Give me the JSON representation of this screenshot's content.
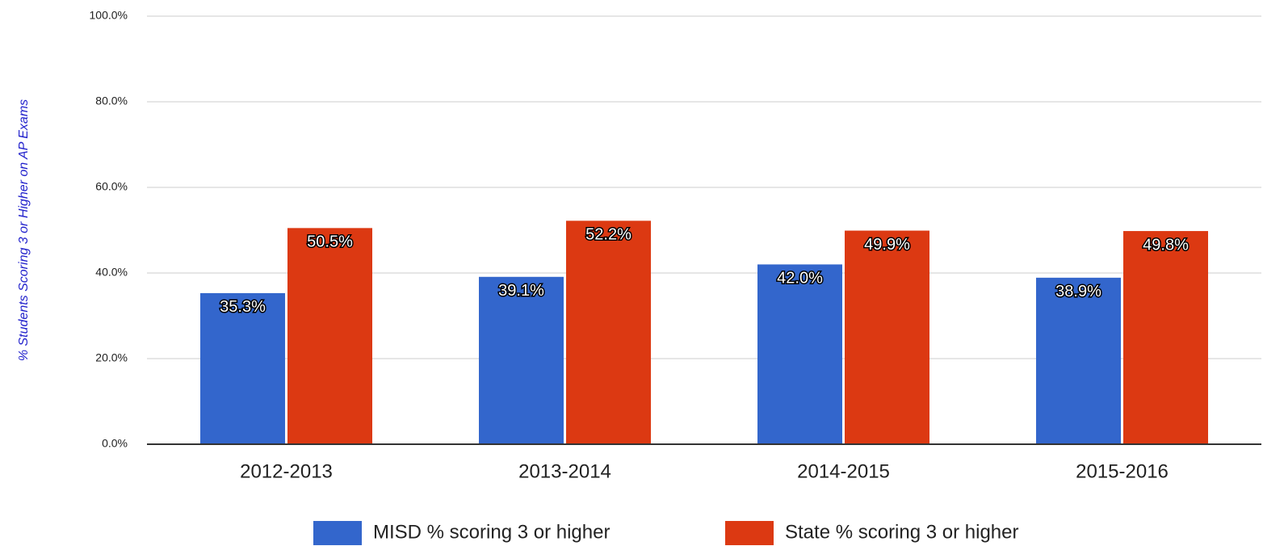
{
  "chart_data": {
    "type": "bar",
    "y_axis_label": "% Students Scoring 3 or Higher on AP Exams",
    "categories": [
      "2012-2013",
      "2013-2014",
      "2014-2015",
      "2015-2016"
    ],
    "series": [
      {
        "name": "MISD % scoring 3 or higher",
        "color": "#3366cc",
        "values": [
          35.3,
          39.1,
          42.0,
          38.9
        ],
        "value_labels": [
          "35.3%",
          "39.1%",
          "42.0%",
          "38.9%"
        ]
      },
      {
        "name": "State % scoring 3 or higher",
        "color": "#dc3912",
        "values": [
          50.5,
          52.2,
          49.9,
          49.8
        ],
        "value_labels": [
          "50.5%",
          "52.2%",
          "49.9%",
          "49.8%"
        ]
      }
    ],
    "ylim": [
      0,
      100
    ],
    "yticks": [
      {
        "value": 0,
        "label": "0.0%"
      },
      {
        "value": 20,
        "label": "20.0%"
      },
      {
        "value": 40,
        "label": "40.0%"
      },
      {
        "value": 60,
        "label": "60.0%"
      },
      {
        "value": 80,
        "label": "80.0%"
      },
      {
        "value": 100,
        "label": "100.0%"
      }
    ],
    "grid": true,
    "legend": "bottom"
  }
}
